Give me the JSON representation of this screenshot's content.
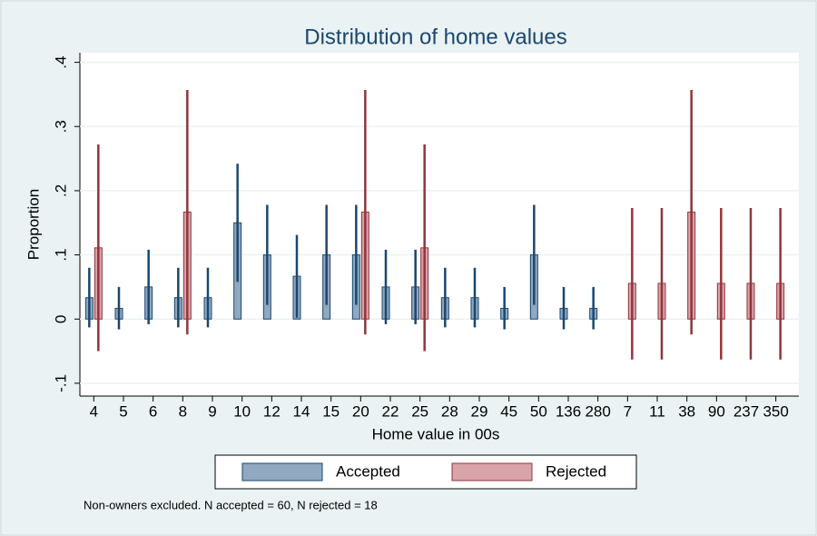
{
  "chart_data": {
    "type": "bar",
    "title": "Distribution of home values",
    "x_label": "Home value in 00s",
    "y_label": "Proportion",
    "note": "Non-owners excluded. N accepted = 60, N rejected = 18",
    "categories": [
      "4",
      "5",
      "6",
      "8",
      "9",
      "10",
      "12",
      "14",
      "15",
      "20",
      "22",
      "25",
      "28",
      "29",
      "45",
      "50",
      "136",
      "280",
      "7",
      "11",
      "38",
      "90",
      "237",
      "350"
    ],
    "series": [
      {
        "name": "Accepted",
        "color": "#90a8c0",
        "edge_color": "#1a476f",
        "values": [
          0.0333,
          0.0167,
          0.05,
          0.0333,
          0.0333,
          0.15,
          0.1,
          0.0667,
          0.1,
          0.1,
          0.05,
          0.05,
          0.0333,
          0.0333,
          0.0167,
          0.1,
          0.0167,
          0.0167,
          null,
          null,
          null,
          null,
          null,
          null
        ],
        "ci_lower": [
          -0.013,
          -0.016,
          -0.008,
          -0.013,
          -0.013,
          0.058,
          0.022,
          0.002,
          0.022,
          0.022,
          -0.008,
          -0.008,
          -0.013,
          -0.013,
          -0.016,
          0.022,
          -0.016,
          -0.016,
          null,
          null,
          null,
          null,
          null,
          null
        ],
        "ci_upper": [
          0.08,
          0.05,
          0.108,
          0.08,
          0.08,
          0.242,
          0.178,
          0.131,
          0.178,
          0.178,
          0.108,
          0.108,
          0.08,
          0.08,
          0.05,
          0.178,
          0.05,
          0.05,
          null,
          null,
          null,
          null,
          null,
          null
        ]
      },
      {
        "name": "Rejected",
        "color": "#d9a3aa",
        "edge_color": "#90353b",
        "values": [
          0.111,
          null,
          null,
          0.1667,
          null,
          null,
          null,
          null,
          null,
          0.1667,
          null,
          0.111,
          null,
          null,
          null,
          null,
          null,
          null,
          0.0556,
          0.0556,
          0.1667,
          0.0556,
          0.0556,
          0.0556
        ],
        "ci_lower": [
          -0.05,
          null,
          null,
          -0.024,
          null,
          null,
          null,
          null,
          null,
          -0.024,
          null,
          -0.05,
          null,
          null,
          null,
          null,
          null,
          null,
          -0.063,
          -0.063,
          -0.024,
          -0.063,
          -0.063,
          -0.063
        ],
        "ci_upper": [
          0.272,
          null,
          null,
          0.357,
          null,
          null,
          null,
          null,
          null,
          0.357,
          null,
          0.272,
          null,
          null,
          null,
          null,
          null,
          null,
          0.173,
          0.173,
          0.357,
          0.173,
          0.173,
          0.173
        ]
      }
    ],
    "ylim": [
      -0.12,
      0.415
    ],
    "yticks": [
      {
        "value": -0.1,
        "label": "-.1"
      },
      0,
      {
        "value": 0.1,
        "label": ".1"
      },
      {
        "value": 0.2,
        "label": ".2"
      },
      {
        "value": 0.3,
        "label": ".3"
      },
      {
        "value": 0.4,
        "label": ".4"
      }
    ],
    "grid": true
  }
}
